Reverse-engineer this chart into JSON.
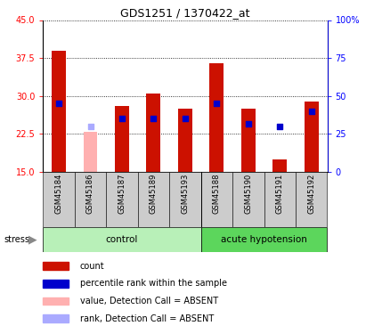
{
  "title": "GDS1251 / 1370422_at",
  "samples": [
    "GSM45184",
    "GSM45186",
    "GSM45187",
    "GSM45189",
    "GSM45193",
    "GSM45188",
    "GSM45190",
    "GSM45191",
    "GSM45192"
  ],
  "red_values": [
    39.0,
    23.0,
    28.0,
    30.5,
    27.5,
    36.5,
    27.5,
    17.5,
    29.0
  ],
  "blue_values": [
    28.5,
    24.0,
    25.5,
    25.5,
    25.5,
    28.5,
    24.5,
    24.0,
    27.0
  ],
  "absent_mask": [
    false,
    true,
    false,
    false,
    false,
    false,
    false,
    false,
    false
  ],
  "absent_rank_mask": [
    false,
    true,
    false,
    false,
    false,
    false,
    false,
    false,
    false
  ],
  "ylim_left": [
    15,
    45
  ],
  "ylim_right": [
    0,
    100
  ],
  "yticks_left": [
    15,
    22.5,
    30,
    37.5,
    45
  ],
  "yticks_right": [
    0,
    25,
    50,
    75,
    100
  ],
  "bar_width": 0.45,
  "bar_color_present": "#cc1100",
  "bar_color_absent": "#ffb0b0",
  "rank_color_present": "#0000cc",
  "rank_color_absent": "#aaaaff",
  "rank_marker_size": 16,
  "tick_bg_color": "#cccccc",
  "group_color_light": "#b8f0b8",
  "group_color_dark": "#5cd65c",
  "legend_items": [
    {
      "color": "#cc1100",
      "label": "count"
    },
    {
      "color": "#0000cc",
      "label": "percentile rank within the sample"
    },
    {
      "color": "#ffb0b0",
      "label": "value, Detection Call = ABSENT"
    },
    {
      "color": "#aaaaff",
      "label": "rank, Detection Call = ABSENT"
    }
  ]
}
